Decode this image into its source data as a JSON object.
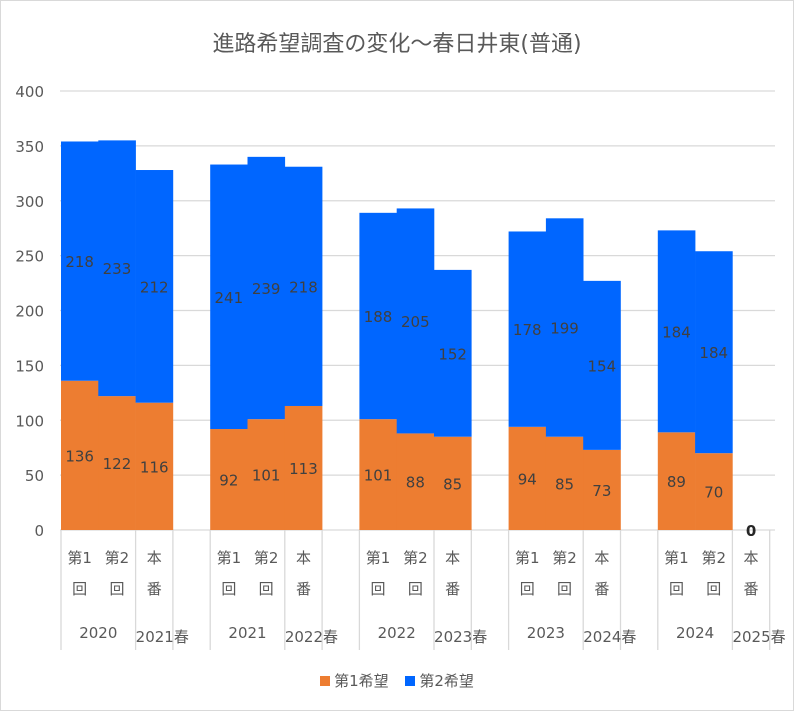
{
  "chart_data": {
    "type": "bar",
    "stacked": true,
    "title": "進路希望調査の変化～春日井東(普通)",
    "ylim": [
      0,
      400
    ],
    "yticks": [
      0,
      50,
      100,
      150,
      200,
      250,
      300,
      350,
      400
    ],
    "grid": true,
    "legend_position": "bottom",
    "groups": [
      {
        "label_a": "2020",
        "label_b": "2021春",
        "categories": [
          [
            "第1",
            "回"
          ],
          [
            "第2",
            "回"
          ],
          [
            "本",
            "番"
          ],
          []
        ]
      },
      {
        "label_a": "2021",
        "label_b": "2022春",
        "categories": [
          [
            "第1",
            "回"
          ],
          [
            "第2",
            "回"
          ],
          [
            "本",
            "番"
          ],
          []
        ]
      },
      {
        "label_a": "2022",
        "label_b": "2023春",
        "categories": [
          [
            "第1",
            "回"
          ],
          [
            "第2",
            "回"
          ],
          [
            "本",
            "番"
          ],
          []
        ]
      },
      {
        "label_a": "2023",
        "label_b": "2024春",
        "categories": [
          [
            "第1",
            "回"
          ],
          [
            "第2",
            "回"
          ],
          [
            "本",
            "番"
          ],
          []
        ]
      },
      {
        "label_a": "2024",
        "label_b": "2025春",
        "categories": [
          [
            "第1",
            "回"
          ],
          [
            "第2",
            "回"
          ],
          [
            "本",
            "番"
          ]
        ]
      }
    ],
    "series": [
      {
        "name": "第1希望",
        "color": "#ED7D31",
        "values": [
          136,
          122,
          116,
          null,
          92,
          101,
          113,
          null,
          101,
          88,
          85,
          null,
          94,
          85,
          73,
          null,
          89,
          70,
          0
        ]
      },
      {
        "name": "第2希望",
        "color": "#0066FF",
        "values": [
          218,
          233,
          212,
          null,
          241,
          239,
          218,
          null,
          188,
          205,
          152,
          null,
          178,
          199,
          154,
          null,
          184,
          184,
          0
        ]
      }
    ]
  }
}
